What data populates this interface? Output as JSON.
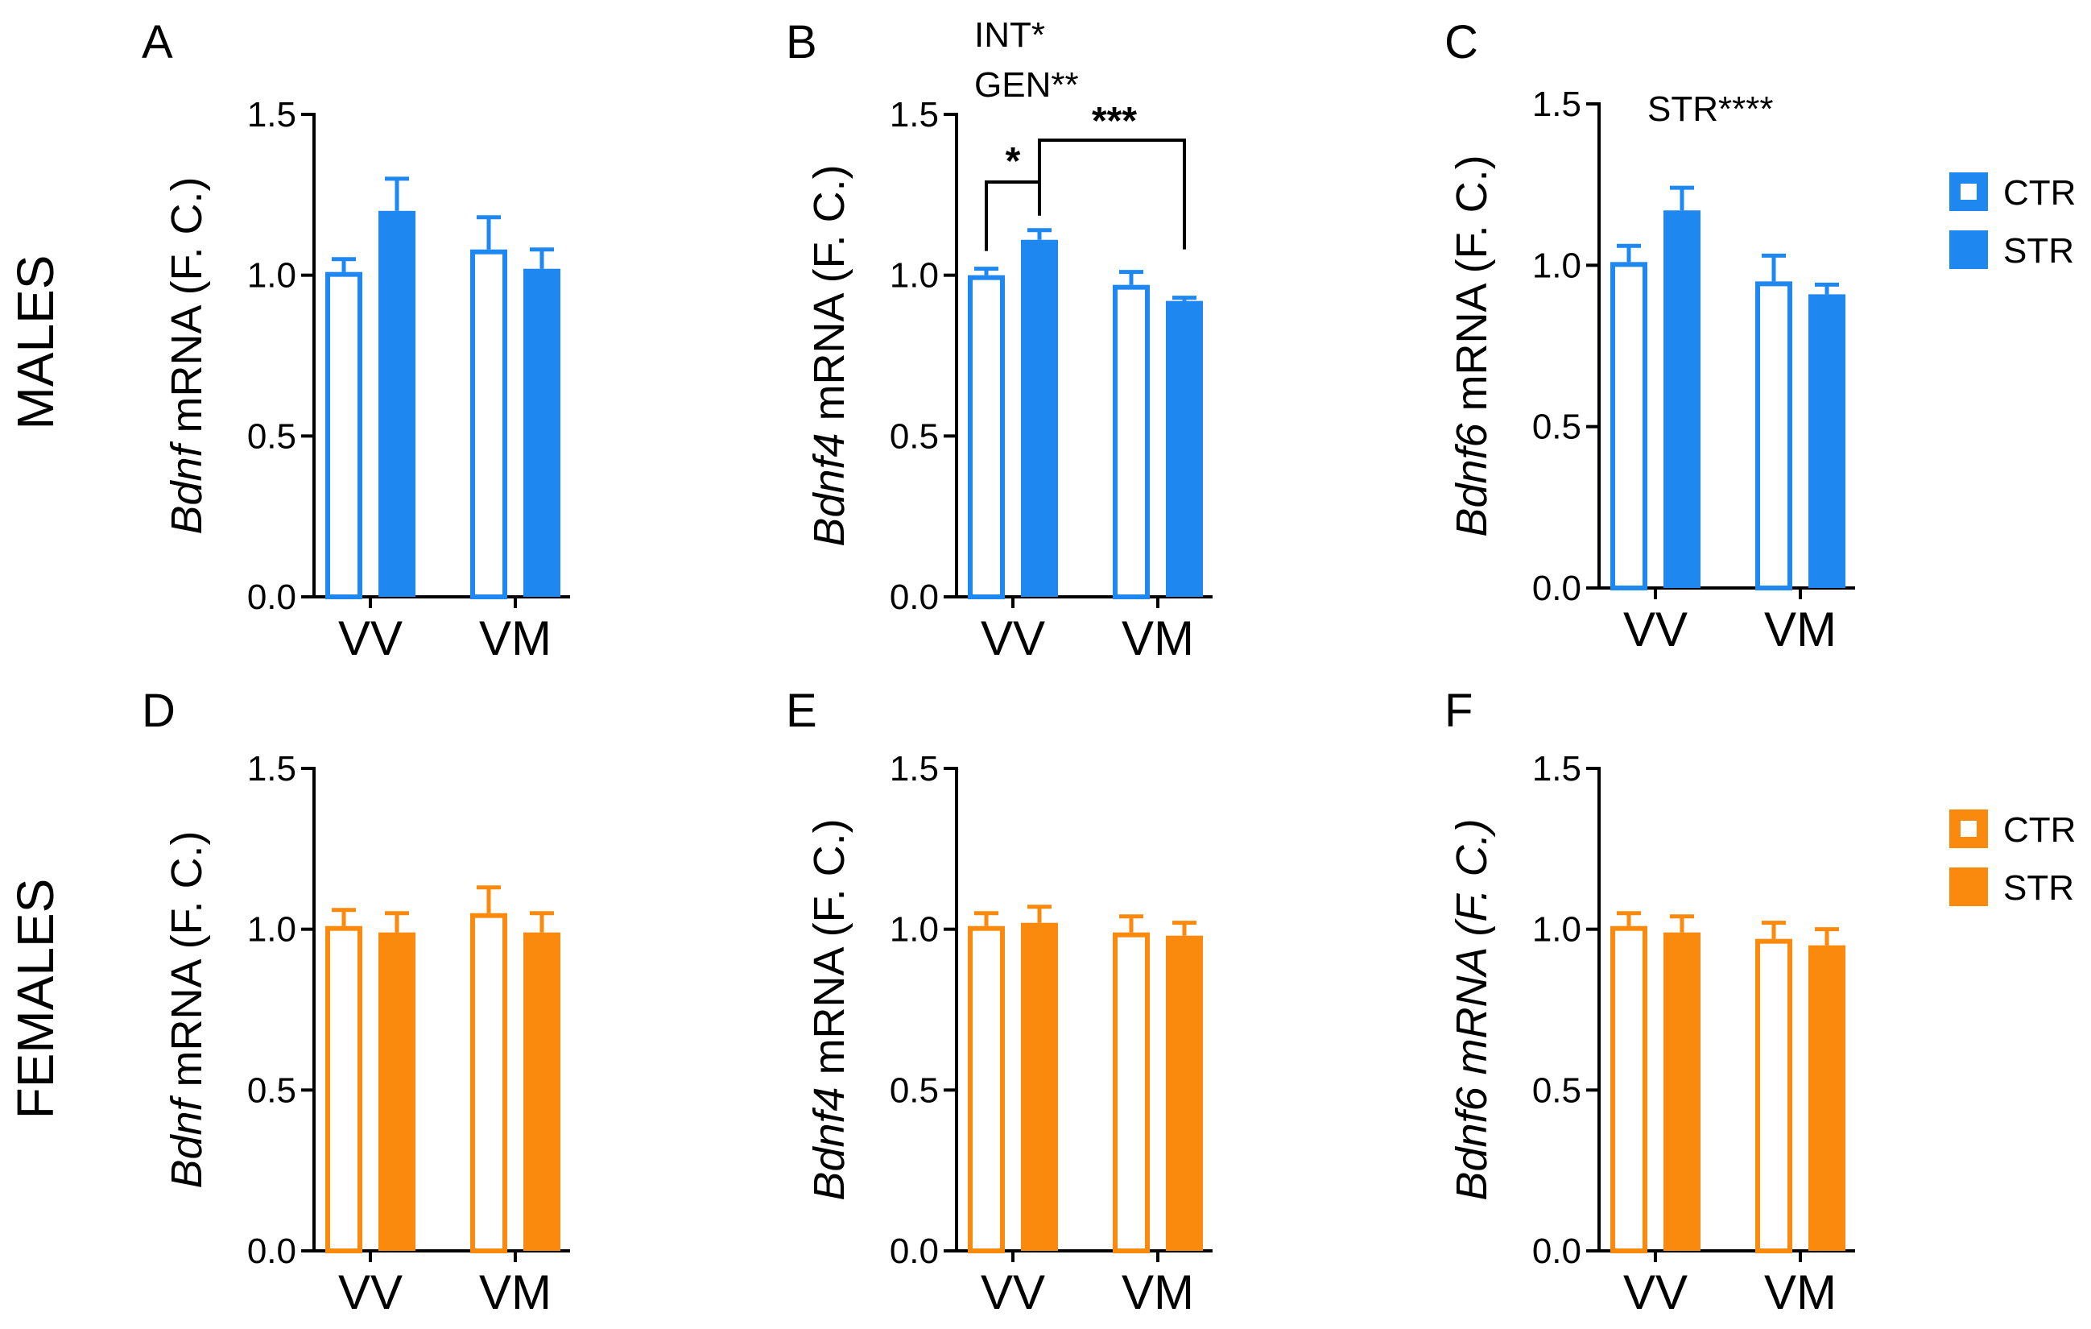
{
  "row_labels": {
    "males": "MALES",
    "females": "FEMALES"
  },
  "colors": {
    "males": "#1E88F0",
    "females": "#F98A0E"
  },
  "legend": {
    "ctr": "CTR",
    "str": "STR"
  },
  "chart_data": [
    {
      "panel": "A",
      "type": "bar",
      "row": "males",
      "gene": "Bdnf",
      "gene_italic_all": false,
      "ylabel_rest": " mRNA (F. C.)",
      "categories": [
        "VV",
        "VM"
      ],
      "series": [
        {
          "name": "CTR",
          "values": [
            1.01,
            1.08
          ],
          "errors": [
            0.04,
            0.1
          ]
        },
        {
          "name": "STR",
          "values": [
            1.2,
            1.02
          ],
          "errors": [
            0.1,
            0.06
          ]
        }
      ],
      "ylim": [
        0,
        1.5
      ],
      "yticks": [
        "0.0",
        "0.5",
        "1.0",
        "1.5"
      ],
      "annotations": []
    },
    {
      "panel": "B",
      "type": "bar",
      "row": "males",
      "gene": "Bdnf4",
      "gene_italic_all": false,
      "ylabel_rest": " mRNA (F. C.)",
      "categories": [
        "VV",
        "VM"
      ],
      "series": [
        {
          "name": "CTR",
          "values": [
            1.0,
            0.97
          ],
          "errors": [
            0.02,
            0.04
          ]
        },
        {
          "name": "STR",
          "values": [
            1.11,
            0.92
          ],
          "errors": [
            0.03,
            0.01
          ]
        }
      ],
      "ylim": [
        0,
        1.5
      ],
      "yticks": [
        "0.0",
        "0.5",
        "1.0",
        "1.5"
      ],
      "annotations": [
        "INT*",
        "GEN**"
      ],
      "significance": [
        {
          "label": "*",
          "from": [
            0,
            0
          ],
          "to": [
            0,
            1
          ]
        },
        {
          "label": "***",
          "from": [
            0,
            1
          ],
          "to": [
            1,
            1
          ]
        }
      ]
    },
    {
      "panel": "C",
      "type": "bar",
      "row": "males",
      "gene": "Bdnf6",
      "gene_italic_all": false,
      "ylabel_rest": " mRNA (F. C.)",
      "categories": [
        "VV",
        "VM"
      ],
      "series": [
        {
          "name": "CTR",
          "values": [
            1.01,
            0.95
          ],
          "errors": [
            0.05,
            0.08
          ]
        },
        {
          "name": "STR",
          "values": [
            1.17,
            0.91
          ],
          "errors": [
            0.07,
            0.03
          ]
        }
      ],
      "ylim": [
        0,
        1.5
      ],
      "yticks": [
        "0.0",
        "0.5",
        "1.0",
        "1.5"
      ],
      "annotations": [
        "STR****"
      ]
    },
    {
      "panel": "D",
      "type": "bar",
      "row": "females",
      "gene": "Bdnf",
      "gene_italic_all": false,
      "ylabel_rest": " mRNA (F. C.)",
      "categories": [
        "VV",
        "VM"
      ],
      "series": [
        {
          "name": "CTR",
          "values": [
            1.01,
            1.05
          ],
          "errors": [
            0.05,
            0.08
          ]
        },
        {
          "name": "STR",
          "values": [
            0.99,
            0.99
          ],
          "errors": [
            0.06,
            0.06
          ]
        }
      ],
      "ylim": [
        0,
        1.5
      ],
      "yticks": [
        "0.0",
        "0.5",
        "1.0",
        "1.5"
      ],
      "annotations": []
    },
    {
      "panel": "E",
      "type": "bar",
      "row": "females",
      "gene": "Bdnf4",
      "gene_italic_all": false,
      "ylabel_rest": " mRNA (F. C.)",
      "categories": [
        "VV",
        "VM"
      ],
      "series": [
        {
          "name": "CTR",
          "values": [
            1.01,
            0.99
          ],
          "errors": [
            0.04,
            0.05
          ]
        },
        {
          "name": "STR",
          "values": [
            1.02,
            0.98
          ],
          "errors": [
            0.05,
            0.04
          ]
        }
      ],
      "ylim": [
        0,
        1.5
      ],
      "yticks": [
        "0.0",
        "0.5",
        "1.0",
        "1.5"
      ],
      "annotations": []
    },
    {
      "panel": "F",
      "type": "bar",
      "row": "females",
      "gene": "Bdnf6",
      "gene_italic_all": true,
      "ylabel_rest": " mRNA (F. C.)",
      "categories": [
        "VV",
        "VM"
      ],
      "series": [
        {
          "name": "CTR",
          "values": [
            1.01,
            0.97
          ],
          "errors": [
            0.04,
            0.05
          ]
        },
        {
          "name": "STR",
          "values": [
            0.99,
            0.95
          ],
          "errors": [
            0.05,
            0.05
          ]
        }
      ],
      "ylim": [
        0,
        1.5
      ],
      "yticks": [
        "0.0",
        "0.5",
        "1.0",
        "1.5"
      ],
      "annotations": []
    }
  ]
}
